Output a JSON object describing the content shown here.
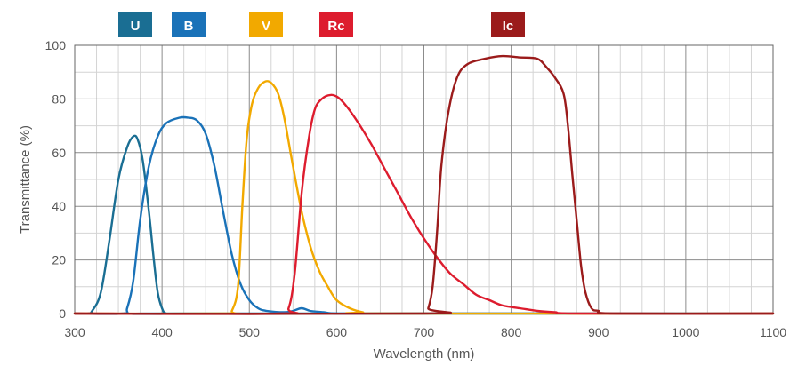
{
  "chart_data": {
    "type": "line",
    "title": "",
    "xlabel": "Wavelength (nm)",
    "ylabel": "Transmittance (%)",
    "xlim": [
      300,
      1100
    ],
    "ylim": [
      0,
      100
    ],
    "x_ticks": [
      "300",
      "400",
      "500",
      "600",
      "700",
      "800",
      "900",
      "1000",
      "1100"
    ],
    "y_ticks": [
      "0",
      "20",
      "40",
      "60",
      "80",
      "100"
    ],
    "grid": true,
    "legend_position": "top",
    "series": [
      {
        "name": "U",
        "color": "#1a6e93",
        "points": [
          [
            300,
            0
          ],
          [
            315,
            0
          ],
          [
            320,
            1
          ],
          [
            330,
            8
          ],
          [
            340,
            28
          ],
          [
            350,
            50
          ],
          [
            360,
            62
          ],
          [
            367,
            66
          ],
          [
            372,
            65
          ],
          [
            378,
            57
          ],
          [
            385,
            38
          ],
          [
            390,
            22
          ],
          [
            395,
            8
          ],
          [
            400,
            2
          ],
          [
            405,
            0
          ],
          [
            420,
            0
          ],
          [
            1100,
            0
          ]
        ]
      },
      {
        "name": "B",
        "color": "#1a72b8",
        "points": [
          [
            300,
            0
          ],
          [
            355,
            0
          ],
          [
            360,
            2
          ],
          [
            367,
            12
          ],
          [
            375,
            35
          ],
          [
            385,
            55
          ],
          [
            395,
            66
          ],
          [
            405,
            71
          ],
          [
            420,
            73
          ],
          [
            430,
            73
          ],
          [
            440,
            72
          ],
          [
            450,
            67
          ],
          [
            460,
            55
          ],
          [
            470,
            38
          ],
          [
            480,
            22
          ],
          [
            490,
            11
          ],
          [
            500,
            5
          ],
          [
            510,
            2
          ],
          [
            520,
            1
          ],
          [
            540,
            0.5
          ],
          [
            550,
            1
          ],
          [
            560,
            2
          ],
          [
            570,
            1
          ],
          [
            585,
            0.5
          ],
          [
            600,
            0
          ],
          [
            650,
            0
          ],
          [
            1100,
            0
          ]
        ]
      },
      {
        "name": "V",
        "color": "#f2a900",
        "points": [
          [
            300,
            0
          ],
          [
            475,
            0
          ],
          [
            480,
            1
          ],
          [
            487,
            10
          ],
          [
            492,
            40
          ],
          [
            497,
            65
          ],
          [
            503,
            78
          ],
          [
            510,
            84
          ],
          [
            518,
            86.5
          ],
          [
            525,
            86
          ],
          [
            533,
            82
          ],
          [
            540,
            73
          ],
          [
            550,
            55
          ],
          [
            560,
            38
          ],
          [
            570,
            25
          ],
          [
            580,
            16
          ],
          [
            590,
            10
          ],
          [
            600,
            5
          ],
          [
            615,
            2
          ],
          [
            630,
            0.5
          ],
          [
            650,
            0
          ],
          [
            1100,
            0
          ]
        ]
      },
      {
        "name": "Rc",
        "color": "#dd1c2e",
        "points": [
          [
            300,
            0
          ],
          [
            535,
            0
          ],
          [
            545,
            2
          ],
          [
            552,
            15
          ],
          [
            560,
            45
          ],
          [
            568,
            65
          ],
          [
            575,
            76
          ],
          [
            583,
            80
          ],
          [
            593,
            81.5
          ],
          [
            602,
            80.5
          ],
          [
            612,
            77
          ],
          [
            625,
            71
          ],
          [
            640,
            63
          ],
          [
            655,
            54
          ],
          [
            670,
            45
          ],
          [
            685,
            36
          ],
          [
            700,
            28
          ],
          [
            715,
            21
          ],
          [
            730,
            15
          ],
          [
            745,
            11
          ],
          [
            760,
            7
          ],
          [
            775,
            5
          ],
          [
            790,
            3
          ],
          [
            810,
            2
          ],
          [
            830,
            1
          ],
          [
            850,
            0.5
          ],
          [
            880,
            0
          ],
          [
            1100,
            0
          ]
        ]
      },
      {
        "name": "Ic",
        "color": "#9b1b1b",
        "points": [
          [
            300,
            0
          ],
          [
            700,
            0
          ],
          [
            705,
            2
          ],
          [
            710,
            10
          ],
          [
            715,
            30
          ],
          [
            720,
            55
          ],
          [
            728,
            75
          ],
          [
            738,
            88
          ],
          [
            750,
            93
          ],
          [
            770,
            95
          ],
          [
            790,
            96
          ],
          [
            810,
            95.5
          ],
          [
            830,
            95
          ],
          [
            840,
            92
          ],
          [
            850,
            88
          ],
          [
            860,
            82
          ],
          [
            865,
            70
          ],
          [
            870,
            52
          ],
          [
            875,
            35
          ],
          [
            880,
            18
          ],
          [
            885,
            8
          ],
          [
            892,
            2
          ],
          [
            900,
            1
          ],
          [
            920,
            0
          ],
          [
            1100,
            0
          ]
        ]
      }
    ]
  }
}
